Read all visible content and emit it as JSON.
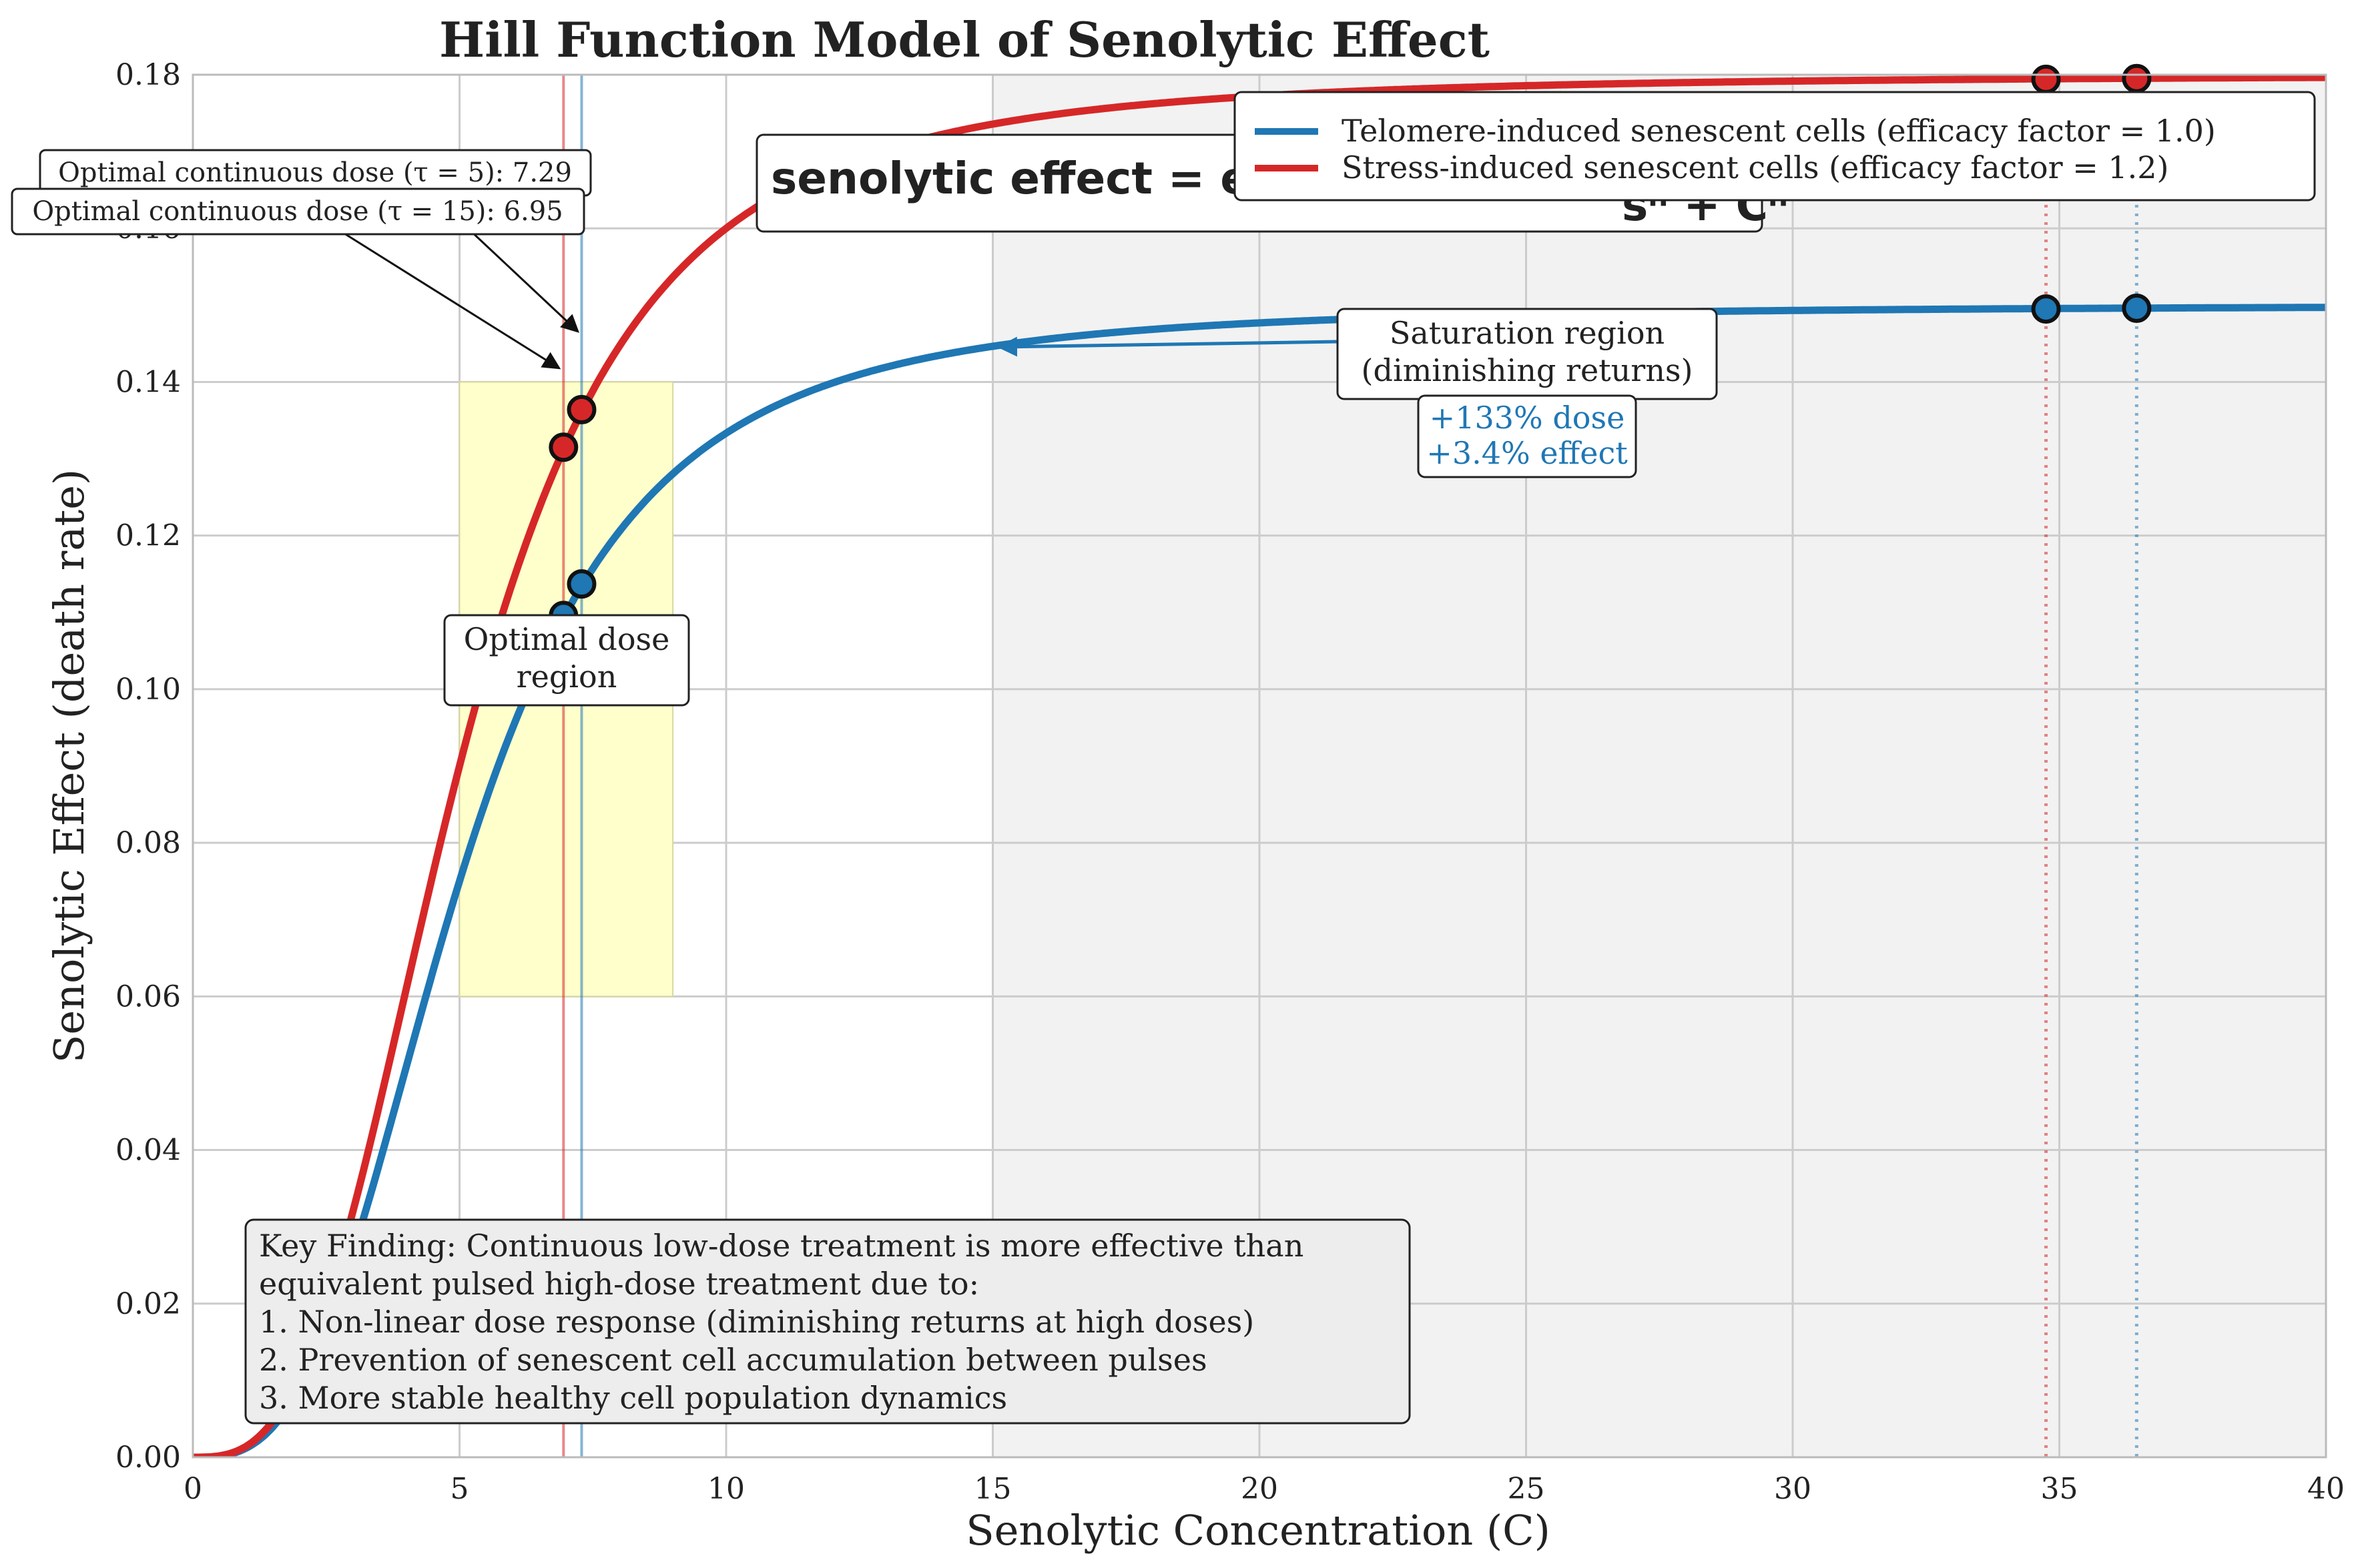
{
  "chart_data": {
    "type": "line",
    "title": "Hill Function Model of Senolytic Effect",
    "xlabel": "Senolytic Concentration (C)",
    "ylabel": "Senolytic Effect (death rate)",
    "xlim": [
      0,
      40
    ],
    "ylim": [
      0,
      0.18
    ],
    "xticks": [
      0,
      5,
      10,
      15,
      20,
      25,
      30,
      35,
      40
    ],
    "xtick_labels": [
      "0",
      "5",
      "10",
      "15",
      "20",
      "25",
      "30",
      "35",
      "40"
    ],
    "yticks": [
      0,
      0.02,
      0.04,
      0.06,
      0.08,
      0.1,
      0.12,
      0.14,
      0.16,
      0.18
    ],
    "ytick_labels": [
      "0.00",
      "0.02",
      "0.04",
      "0.06",
      "0.08",
      "0.10",
      "0.12",
      "0.14",
      "0.16",
      "0.18"
    ],
    "grid": true,
    "legend_position": "top-right",
    "hill": {
      "s": 5,
      "n": 3,
      "base_efficacy": 0.15
    },
    "series": [
      {
        "name": "Telomere-induced senescent cells (efficacy factor = 1.0)",
        "efficacy_factor": 1.0,
        "color": "#1f77b4",
        "markers": [
          {
            "x": 6.95,
            "y": 0.1096
          },
          {
            "x": 7.29,
            "y": 0.1137
          },
          {
            "x": 34.75,
            "y": 0.1495
          },
          {
            "x": 36.45,
            "y": 0.1496
          }
        ]
      },
      {
        "name": "Stress-induced senescent cells (efficacy factor = 1.2)",
        "efficacy_factor": 1.2,
        "color": "#d62728",
        "markers": [
          {
            "x": 6.95,
            "y": 0.1315
          },
          {
            "x": 7.29,
            "y": 0.1364
          },
          {
            "x": 34.75,
            "y": 0.1794
          },
          {
            "x": 36.45,
            "y": 0.1795
          }
        ]
      }
    ],
    "vertical_lines": [
      {
        "x": 6.95,
        "style": "solid",
        "color": "#d62728"
      },
      {
        "x": 7.29,
        "style": "solid",
        "color": "#1f77b4"
      },
      {
        "x": 34.75,
        "style": "dotted",
        "color": "#d62728"
      },
      {
        "x": 36.45,
        "style": "dotted",
        "color": "#1f77b4"
      }
    ],
    "regions": [
      {
        "name": "optimal",
        "x": [
          5,
          9
        ],
        "y": [
          0.06,
          0.14
        ],
        "color": "#ffffcc"
      },
      {
        "name": "saturation",
        "x": [
          15,
          40
        ],
        "y": [
          0,
          0.18
        ],
        "color": "#f2f2f2"
      }
    ],
    "annotations": {
      "optimal_tau5": "Optimal continuous dose (τ = 5): 7.29",
      "optimal_tau15": "Optimal continuous dose (τ = 15): 6.95",
      "optimal_region": [
        "Optimal dose",
        "region"
      ],
      "saturation_region": [
        "Saturation region",
        "(diminishing returns)"
      ],
      "dose_effect": [
        "+133% dose",
        "+3.4% effect"
      ],
      "formula": "senolytic effect = efficacy · Cⁿ / (sⁿ + Cⁿ)",
      "formula_visible": "senolytic effect = e",
      "formula_fragment": "sⁿ + Cⁿ",
      "key_finding": [
        "Key Finding: Continuous low-dose treatment is more effective than",
        "equivalent pulsed high-dose treatment due to:",
        "1. Non-linear dose response (diminishing returns at high doses)",
        "2. Prevention of senescent cell accumulation between pulses",
        "3. More stable healthy cell population dynamics"
      ]
    }
  }
}
